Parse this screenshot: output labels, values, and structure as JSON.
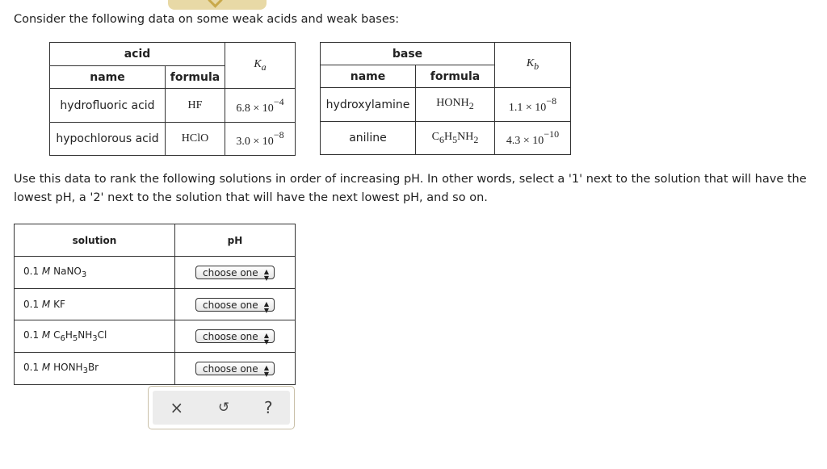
{
  "intro": "Consider the following data on some weak acids and weak bases:",
  "acid_table": {
    "group": "acid",
    "name_header": "name",
    "formula_header": "formula",
    "k_symbol": "K",
    "k_sub": "a",
    "rows": [
      {
        "name": "hydrofluoric acid",
        "formula": "HF",
        "mantissa": "6.8",
        "exponent": "−4"
      },
      {
        "name": "hypochlorous acid",
        "formula": "HClO",
        "mantissa": "3.0",
        "exponent": "−8"
      }
    ]
  },
  "base_table": {
    "group": "base",
    "name_header": "name",
    "formula_header": "formula",
    "k_symbol": "K",
    "k_sub": "b",
    "rows": [
      {
        "name": "hydroxylamine",
        "formula_parts": [
          "HONH",
          "2"
        ],
        "mantissa": "1.1",
        "exponent": "−8"
      },
      {
        "name": "aniline",
        "formula_parts": [
          "C",
          "6",
          "H",
          "5",
          "NH",
          "2"
        ],
        "mantissa": "4.3",
        "exponent": "−10"
      }
    ]
  },
  "instructions": "Use this data to rank the following solutions in order of increasing pH. In other words, select a '1' next to the solution that will have the lowest pH, a '2' next to the solution that will have the next lowest pH, and so on.",
  "solution_table": {
    "solution_header": "solution",
    "ph_header": "pH",
    "conc": "0.1",
    "unit": "M",
    "rows": [
      {
        "parts": [
          "NaNO",
          "3"
        ],
        "select": "choose one"
      },
      {
        "parts": [
          "KF"
        ],
        "select": "choose one"
      },
      {
        "parts": [
          "C",
          "6",
          "H",
          "5",
          "NH",
          "3",
          "Cl"
        ],
        "select": "choose one"
      },
      {
        "parts": [
          "HONH",
          "3",
          "Br"
        ],
        "select": "choose one"
      }
    ]
  },
  "tools": {
    "clear": "×",
    "undo": "↺",
    "help": "?"
  }
}
